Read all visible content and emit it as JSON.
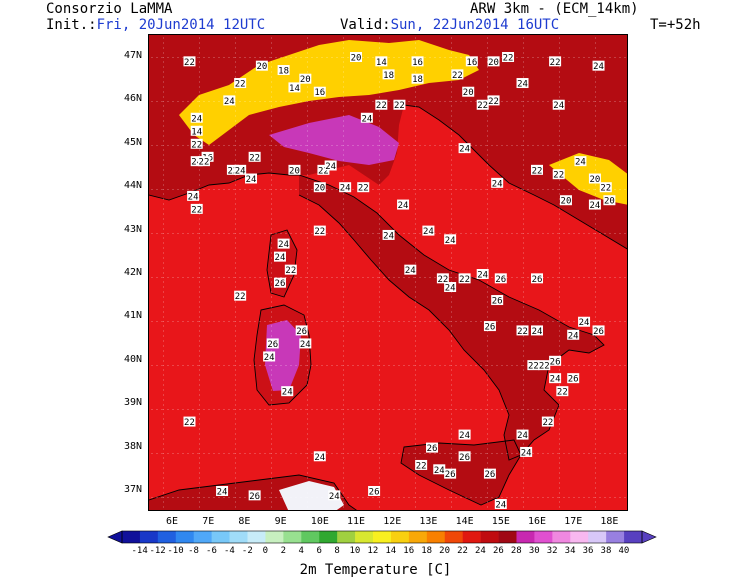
{
  "header": {
    "org": "Consorzio LaMMA",
    "init_label": "Init.:",
    "init_value": "Fri, 20Jun2014 12UTC",
    "model": "ARW 3km - (ECM_14km)",
    "valid_label": "Valid:",
    "valid_value": "Sun, 22Jun2014 16UTC",
    "lead": "T=+52h"
  },
  "map": {
    "region": "Italy",
    "lat_labels": [
      "47N",
      "46N",
      "45N",
      "44N",
      "43N",
      "42N",
      "41N",
      "40N",
      "39N",
      "38N",
      "37N"
    ],
    "lon_labels": [
      "6E",
      "7E",
      "8E",
      "9E",
      "10E",
      "11E",
      "12E",
      "13E",
      "14E",
      "15E",
      "16E",
      "17E",
      "18E"
    ],
    "colors": {
      "sea": "#e8161a",
      "land_hot": "#b40c12",
      "land_warm": "#cc1016",
      "peak": "#c838b8",
      "mountain": "#ffd000",
      "cold": "#f2f2f8",
      "coast": "#000000"
    },
    "point_labels": [
      {
        "v": "22",
        "lon": 6.4,
        "lat": 46.9
      },
      {
        "v": "24",
        "lon": 7.5,
        "lat": 46.0
      },
      {
        "v": "22",
        "lon": 7.8,
        "lat": 46.4
      },
      {
        "v": "20",
        "lon": 8.4,
        "lat": 46.8
      },
      {
        "v": "18",
        "lon": 9.0,
        "lat": 46.7
      },
      {
        "v": "14",
        "lon": 9.3,
        "lat": 46.3
      },
      {
        "v": "20",
        "lon": 9.6,
        "lat": 46.5
      },
      {
        "v": "16",
        "lon": 10.0,
        "lat": 46.2
      },
      {
        "v": "20",
        "lon": 11.0,
        "lat": 47.0
      },
      {
        "v": "14",
        "lon": 11.7,
        "lat": 46.9
      },
      {
        "v": "18",
        "lon": 11.9,
        "lat": 46.6
      },
      {
        "v": "16",
        "lon": 12.7,
        "lat": 46.9
      },
      {
        "v": "18",
        "lon": 12.7,
        "lat": 46.5
      },
      {
        "v": "22",
        "lon": 13.8,
        "lat": 46.6
      },
      {
        "v": "20",
        "lon": 14.1,
        "lat": 46.2
      },
      {
        "v": "16",
        "lon": 14.2,
        "lat": 46.9
      },
      {
        "v": "20",
        "lon": 14.8,
        "lat": 46.9
      },
      {
        "v": "22",
        "lon": 15.2,
        "lat": 47.0
      },
      {
        "v": "22",
        "lon": 16.5,
        "lat": 46.9
      },
      {
        "v": "24",
        "lon": 17.7,
        "lat": 46.8
      },
      {
        "v": "24",
        "lon": 15.6,
        "lat": 46.4
      },
      {
        "v": "24",
        "lon": 16.6,
        "lat": 45.9
      },
      {
        "v": "22",
        "lon": 14.5,
        "lat": 45.9
      },
      {
        "v": "22",
        "lon": 14.8,
        "lat": 46.0
      },
      {
        "v": "22",
        "lon": 11.7,
        "lat": 45.9
      },
      {
        "v": "24",
        "lon": 11.3,
        "lat": 45.6
      },
      {
        "v": "22",
        "lon": 12.2,
        "lat": 45.9
      },
      {
        "v": "24",
        "lon": 6.6,
        "lat": 45.6
      },
      {
        "v": "14",
        "lon": 6.6,
        "lat": 45.3
      },
      {
        "v": "22",
        "lon": 6.6,
        "lat": 45.0
      },
      {
        "v": "16",
        "lon": 6.9,
        "lat": 44.7
      },
      {
        "v": "24",
        "lon": 6.6,
        "lat": 44.6
      },
      {
        "v": "22",
        "lon": 6.8,
        "lat": 44.6
      },
      {
        "v": "22",
        "lon": 7.6,
        "lat": 44.4
      },
      {
        "v": "24",
        "lon": 7.8,
        "lat": 44.4
      },
      {
        "v": "22",
        "lon": 8.2,
        "lat": 44.7
      },
      {
        "v": "24",
        "lon": 8.1,
        "lat": 44.2
      },
      {
        "v": "20",
        "lon": 9.3,
        "lat": 44.4
      },
      {
        "v": "22",
        "lon": 10.1,
        "lat": 44.4
      },
      {
        "v": "24",
        "lon": 10.3,
        "lat": 44.5
      },
      {
        "v": "20",
        "lon": 10.0,
        "lat": 44.0
      },
      {
        "v": "24",
        "lon": 10.7,
        "lat": 44.0
      },
      {
        "v": "22",
        "lon": 11.2,
        "lat": 44.0
      },
      {
        "v": "24",
        "lon": 14.0,
        "lat": 44.9
      },
      {
        "v": "24",
        "lon": 14.9,
        "lat": 44.1
      },
      {
        "v": "22",
        "lon": 16.0,
        "lat": 44.4
      },
      {
        "v": "22",
        "lon": 16.6,
        "lat": 44.3
      },
      {
        "v": "24",
        "lon": 17.2,
        "lat": 44.6
      },
      {
        "v": "20",
        "lon": 17.6,
        "lat": 44.2
      },
      {
        "v": "22",
        "lon": 17.9,
        "lat": 44.0
      },
      {
        "v": "20",
        "lon": 16.8,
        "lat": 43.7
      },
      {
        "v": "24",
        "lon": 17.6,
        "lat": 43.6
      },
      {
        "v": "20",
        "lon": 18.0,
        "lat": 43.7
      },
      {
        "v": "24",
        "lon": 6.5,
        "lat": 43.8
      },
      {
        "v": "22",
        "lon": 6.6,
        "lat": 43.5
      },
      {
        "v": "24",
        "lon": 12.3,
        "lat": 43.6
      },
      {
        "v": "22",
        "lon": 10.0,
        "lat": 43.0
      },
      {
        "v": "24",
        "lon": 11.9,
        "lat": 42.9
      },
      {
        "v": "24",
        "lon": 13.0,
        "lat": 43.0
      },
      {
        "v": "24",
        "lon": 13.6,
        "lat": 42.8
      },
      {
        "v": "24",
        "lon": 9.0,
        "lat": 42.7
      },
      {
        "v": "24",
        "lon": 8.9,
        "lat": 42.4
      },
      {
        "v": "22",
        "lon": 9.2,
        "lat": 42.1
      },
      {
        "v": "26",
        "lon": 8.9,
        "lat": 41.8
      },
      {
        "v": "24",
        "lon": 12.5,
        "lat": 42.1
      },
      {
        "v": "22",
        "lon": 13.4,
        "lat": 41.9
      },
      {
        "v": "24",
        "lon": 13.6,
        "lat": 41.7
      },
      {
        "v": "22",
        "lon": 14.0,
        "lat": 41.9
      },
      {
        "v": "24",
        "lon": 14.5,
        "lat": 42.0
      },
      {
        "v": "26",
        "lon": 15.0,
        "lat": 41.9
      },
      {
        "v": "26",
        "lon": 16.0,
        "lat": 41.9
      },
      {
        "v": "26",
        "lon": 14.9,
        "lat": 41.4
      },
      {
        "v": "22",
        "lon": 7.8,
        "lat": 41.5
      },
      {
        "v": "26",
        "lon": 9.5,
        "lat": 40.7
      },
      {
        "v": "24",
        "lon": 9.6,
        "lat": 40.4
      },
      {
        "v": "26",
        "lon": 8.7,
        "lat": 40.4
      },
      {
        "v": "24",
        "lon": 8.6,
        "lat": 40.1
      },
      {
        "v": "24",
        "lon": 9.1,
        "lat": 39.3
      },
      {
        "v": "26",
        "lon": 14.7,
        "lat": 40.8
      },
      {
        "v": "22",
        "lon": 15.6,
        "lat": 40.7
      },
      {
        "v": "24",
        "lon": 16.0,
        "lat": 40.7
      },
      {
        "v": "24",
        "lon": 17.3,
        "lat": 40.9
      },
      {
        "v": "26",
        "lon": 17.7,
        "lat": 40.7
      },
      {
        "v": "24",
        "lon": 17.0,
        "lat": 40.6
      },
      {
        "v": "22",
        "lon": 15.9,
        "lat": 39.9
      },
      {
        "v": "22",
        "lon": 16.2,
        "lat": 39.9
      },
      {
        "v": "26",
        "lon": 16.5,
        "lat": 40.0
      },
      {
        "v": "24",
        "lon": 16.5,
        "lat": 39.6
      },
      {
        "v": "26",
        "lon": 17.0,
        "lat": 39.6
      },
      {
        "v": "22",
        "lon": 16.7,
        "lat": 39.3
      },
      {
        "v": "22",
        "lon": 16.3,
        "lat": 38.6
      },
      {
        "v": "22",
        "lon": 6.4,
        "lat": 38.6
      },
      {
        "v": "24",
        "lon": 14.0,
        "lat": 38.3
      },
      {
        "v": "24",
        "lon": 15.6,
        "lat": 38.3
      },
      {
        "v": "26",
        "lon": 13.1,
        "lat": 38.0
      },
      {
        "v": "26",
        "lon": 14.0,
        "lat": 37.8
      },
      {
        "v": "24",
        "lon": 15.7,
        "lat": 37.9
      },
      {
        "v": "22",
        "lon": 12.8,
        "lat": 37.6
      },
      {
        "v": "24",
        "lon": 13.3,
        "lat": 37.5
      },
      {
        "v": "26",
        "lon": 13.6,
        "lat": 37.4
      },
      {
        "v": "26",
        "lon": 14.7,
        "lat": 37.4
      },
      {
        "v": "24",
        "lon": 10.0,
        "lat": 37.8
      },
      {
        "v": "24",
        "lon": 7.3,
        "lat": 37.0
      },
      {
        "v": "26",
        "lon": 8.2,
        "lat": 36.9
      },
      {
        "v": "24",
        "lon": 10.4,
        "lat": 36.9
      },
      {
        "v": "26",
        "lon": 11.5,
        "lat": 37.0
      },
      {
        "v": "24",
        "lon": 15.0,
        "lat": 36.7
      }
    ]
  },
  "colorbar": {
    "title": "2m Temperature [C]",
    "labels": [
      "-14",
      "-12",
      "-10",
      "-8",
      "-6",
      "-4",
      "-2",
      "0",
      "2",
      "4",
      "6",
      "8",
      "10",
      "12",
      "14",
      "16",
      "18",
      "20",
      "22",
      "24",
      "26",
      "28",
      "30",
      "32",
      "34",
      "36",
      "38",
      "40"
    ],
    "colors": [
      "#10109a",
      "#1838c8",
      "#2060e0",
      "#3088f0",
      "#50a8f8",
      "#78c8f8",
      "#a0dcf8",
      "#c8ecf8",
      "#c8f0c0",
      "#98e090",
      "#60c860",
      "#30a830",
      "#a0d040",
      "#d8e830",
      "#f8f020",
      "#f8d010",
      "#f8a808",
      "#f88000",
      "#f04808",
      "#e01810",
      "#c00c10",
      "#a00814",
      "#c828b0",
      "#e050d0",
      "#f088e0",
      "#f8b8f0",
      "#d8c8f8",
      "#9880e0",
      "#5840c0"
    ]
  }
}
